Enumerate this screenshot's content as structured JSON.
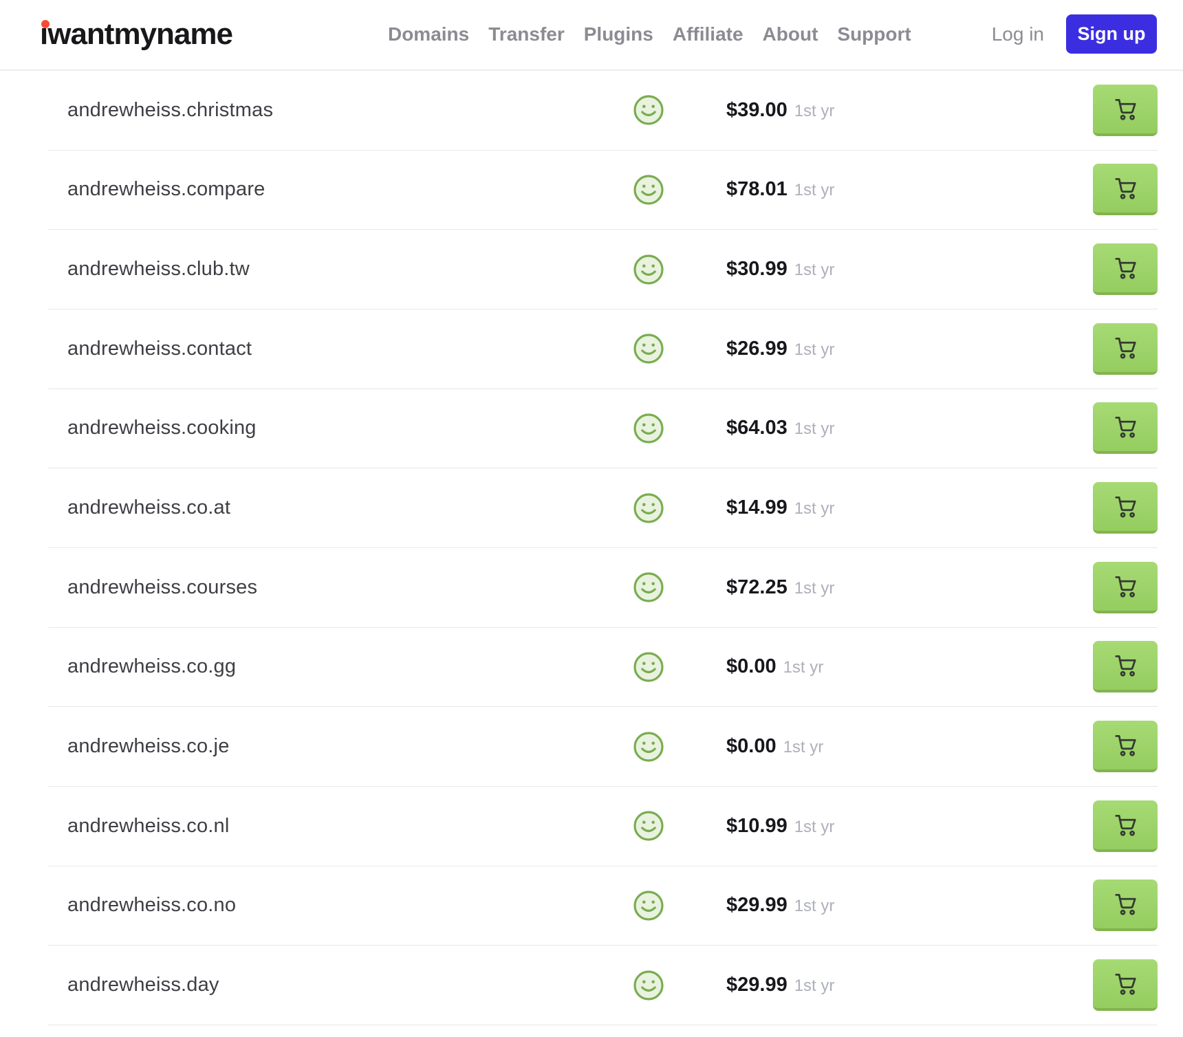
{
  "header": {
    "logo_text": "iwantmyname",
    "nav_items": [
      "Domains",
      "Transfer",
      "Plugins",
      "Affiliate",
      "About",
      "Support"
    ],
    "login_label": "Log in",
    "signup_label": "Sign up"
  },
  "results": [
    {
      "domain": "andrewheiss.christmas",
      "price": "$39.00",
      "term": "1st yr",
      "availability": "available"
    },
    {
      "domain": "andrewheiss.compare",
      "price": "$78.01",
      "term": "1st yr",
      "availability": "available"
    },
    {
      "domain": "andrewheiss.club.tw",
      "price": "$30.99",
      "term": "1st yr",
      "availability": "available"
    },
    {
      "domain": "andrewheiss.contact",
      "price": "$26.99",
      "term": "1st yr",
      "availability": "available"
    },
    {
      "domain": "andrewheiss.cooking",
      "price": "$64.03",
      "term": "1st yr",
      "availability": "available"
    },
    {
      "domain": "andrewheiss.co.at",
      "price": "$14.99",
      "term": "1st yr",
      "availability": "available"
    },
    {
      "domain": "andrewheiss.courses",
      "price": "$72.25",
      "term": "1st yr",
      "availability": "available"
    },
    {
      "domain": "andrewheiss.co.gg",
      "price": "$0.00",
      "term": "1st yr",
      "availability": "available"
    },
    {
      "domain": "andrewheiss.co.je",
      "price": "$0.00",
      "term": "1st yr",
      "availability": "available"
    },
    {
      "domain": "andrewheiss.co.nl",
      "price": "$10.99",
      "term": "1st yr",
      "availability": "available"
    },
    {
      "domain": "andrewheiss.co.no",
      "price": "$29.99",
      "term": "1st yr",
      "availability": "available"
    },
    {
      "domain": "andrewheiss.day",
      "price": "$29.99",
      "term": "1st yr",
      "availability": "available"
    }
  ],
  "icons": {
    "availability": "smiley-face",
    "cart": "shopping-cart"
  },
  "colors": {
    "signup_button": "#3b2ee0",
    "logo_dot": "#f84a38",
    "smiley_stroke": "#79ad50",
    "smiley_fill": "#e9f2df",
    "cart_button_top": "#a6da74",
    "cart_button_bottom": "#95cd60",
    "cart_button_edge": "#82b44e",
    "nav_text": "#8b8b93",
    "domain_text": "#3e3e45",
    "price_text": "#17171c",
    "term_text": "#aeb0ba",
    "row_border": "#e8e8ea"
  }
}
